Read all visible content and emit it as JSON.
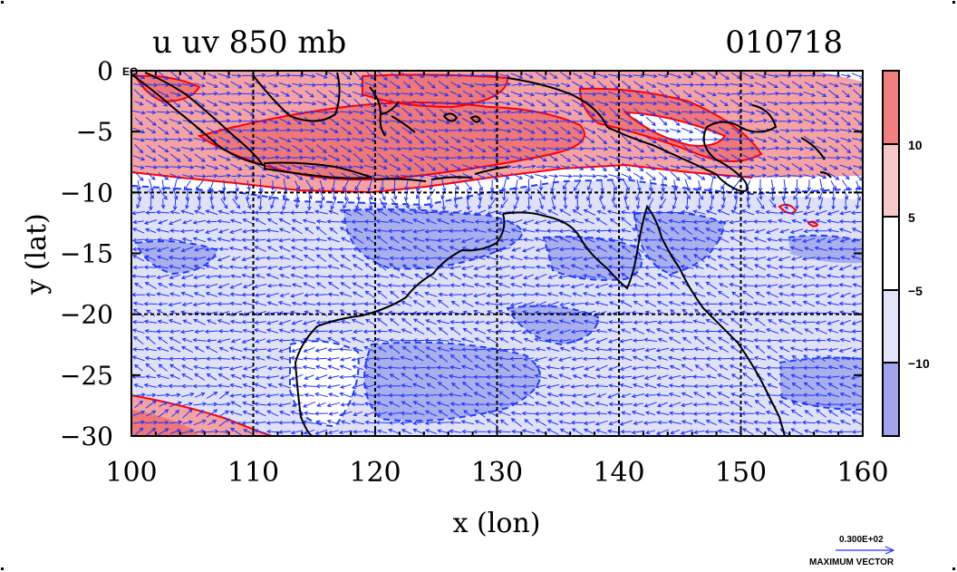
{
  "title": "u uv 850 mb",
  "date_stamp": "010718",
  "x_axis": {
    "label": "x (lon)",
    "ticks": [
      "100",
      "110",
      "120",
      "130",
      "140",
      "150",
      "160"
    ],
    "range": [
      100,
      160
    ]
  },
  "y_axis": {
    "label": "y (lat)",
    "ticks": [
      "0",
      "−5",
      "−10",
      "−15",
      "−20",
      "−25",
      "−30"
    ],
    "range": [
      -30,
      0
    ]
  },
  "eq_label": "EQ",
  "colorbar": {
    "tick_labels": [
      "10",
      "5",
      "−5",
      "−10"
    ],
    "bands": [
      "#f08080",
      "#f7c8c8",
      "#ffffff",
      "#e2e4f8",
      "#9fa6ee"
    ]
  },
  "vector_key": {
    "value": "0.300E+02",
    "caption": "MAXIMUM VECTOR"
  },
  "colors": {
    "positive": "#f4a2a2",
    "positive_strong": "#ee7777",
    "negative": "#dfe2f7",
    "negative_strong": "#a8afec",
    "contour_pos": "#ff0000",
    "contour_neg": "#1f3cff",
    "vector": "#2233ff",
    "coast": "#000000"
  }
}
